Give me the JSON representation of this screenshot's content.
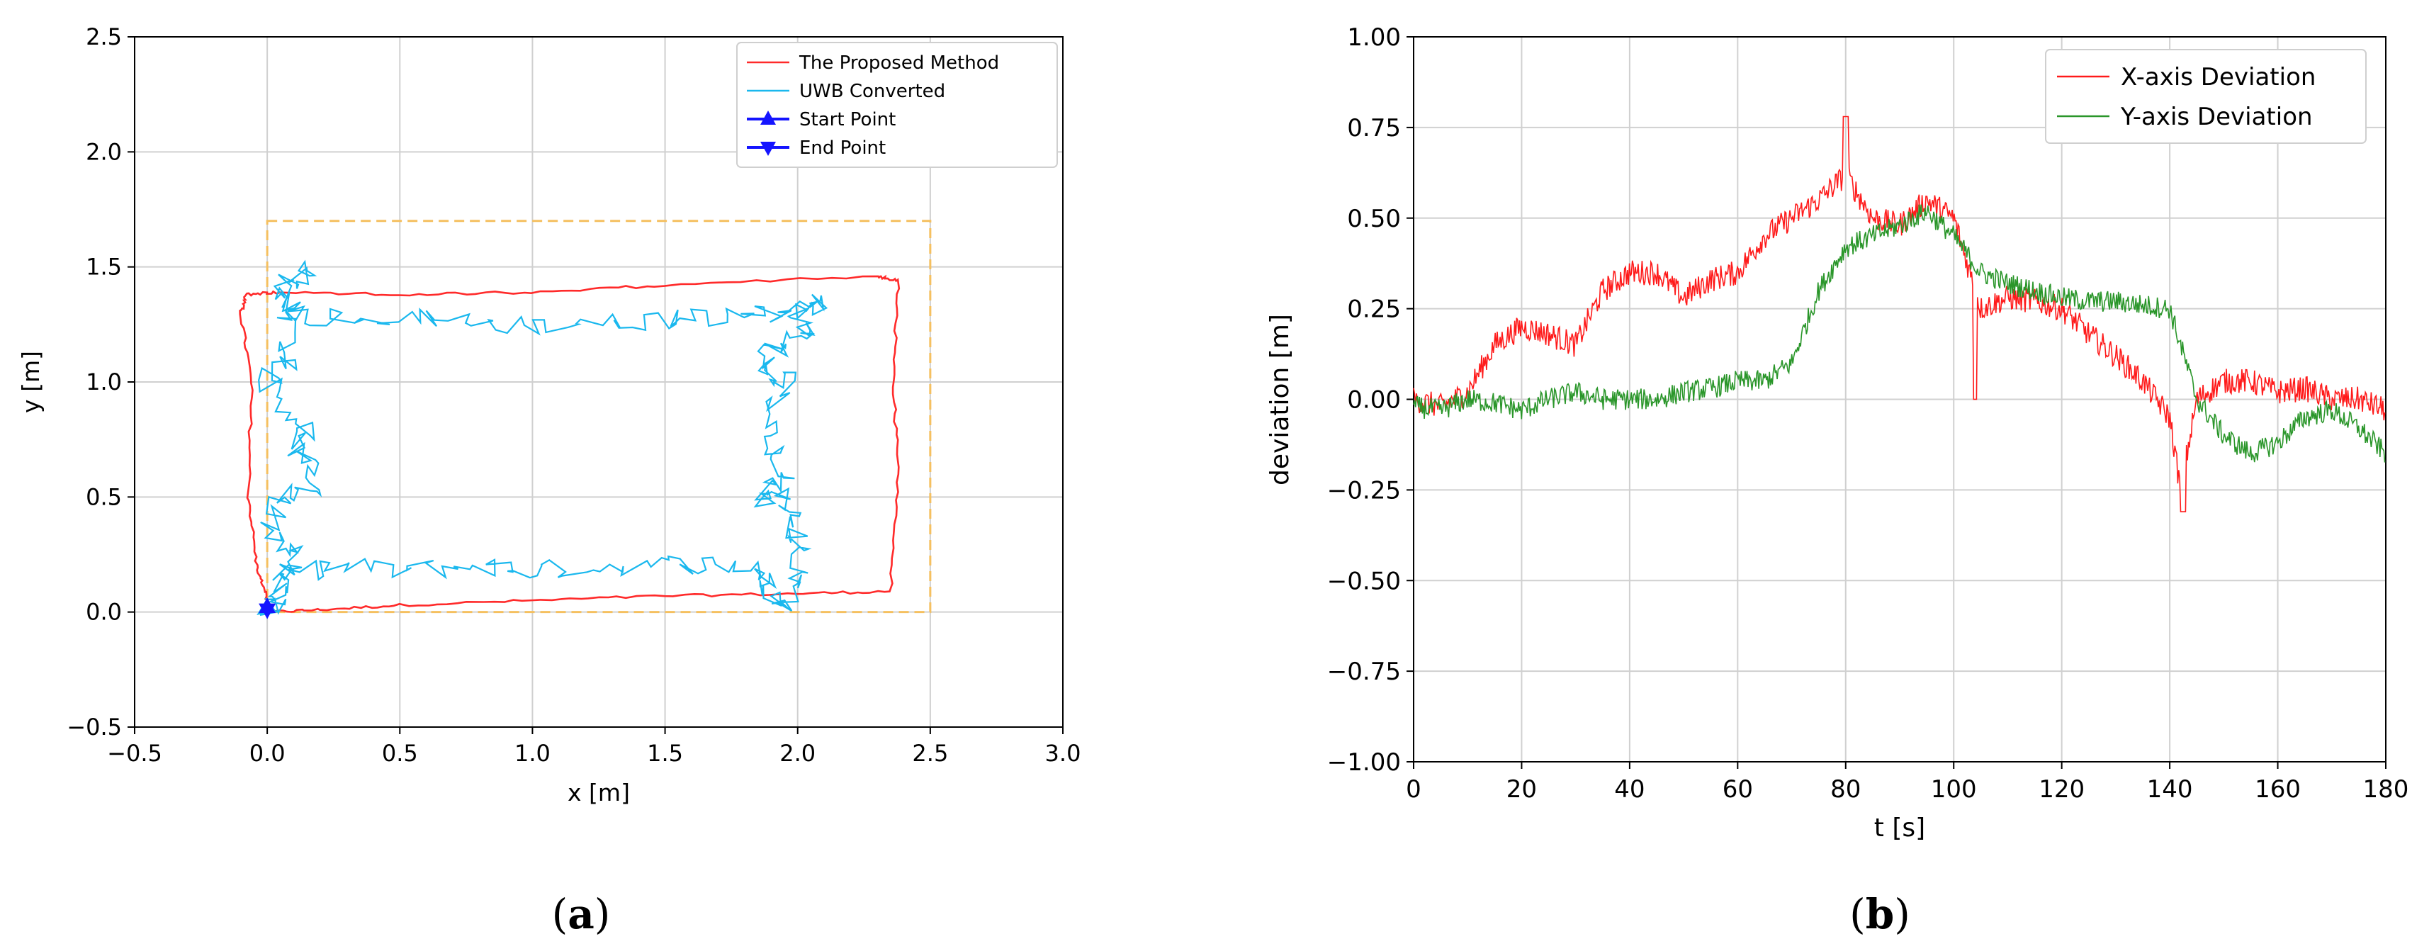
{
  "panels": {
    "a": {
      "caption_open": "(",
      "caption_letter": "a",
      "caption_close": ")"
    },
    "b": {
      "caption_open": "(",
      "caption_letter": "b",
      "caption_close": ")"
    }
  },
  "chart_data": [
    {
      "type": "line",
      "xlabel": "x [m]",
      "ylabel": "y [m]",
      "xlim": [
        -0.5,
        3.0
      ],
      "ylim": [
        -0.5,
        2.5
      ],
      "xticks": [
        -0.5,
        0.0,
        0.5,
        1.0,
        1.5,
        2.0,
        2.5,
        3.0
      ],
      "yticks": [
        -0.5,
        0.0,
        0.5,
        1.0,
        1.5,
        2.0,
        2.5
      ],
      "xtick_labels": [
        "−0.5",
        "0.0",
        "0.5",
        "1.0",
        "1.5",
        "2.0",
        "2.5",
        "3.0"
      ],
      "ytick_labels": [
        "−0.5",
        "0.0",
        "0.5",
        "1.0",
        "1.5",
        "2.0",
        "2.5"
      ],
      "grid": true,
      "legend_position": "upper right",
      "colors": {
        "proposed": "#ff2a2a",
        "uwb": "#1ab8ee",
        "markers": "#1414ff",
        "reference": "#f5c060"
      },
      "reference_rectangle": {
        "x0": 0.0,
        "y0": 0.0,
        "x1": 2.5,
        "y1": 1.7
      },
      "series": [
        {
          "name": "The Proposed Method",
          "x": [
            0.0,
            0.2,
            0.5,
            1.0,
            1.5,
            2.0,
            2.35,
            2.38,
            2.36,
            2.38,
            2.3,
            1.5,
            1.0,
            0.5,
            0.05,
            -0.08,
            -0.1,
            -0.06,
            -0.07,
            -0.04,
            0.0
          ],
          "y": [
            0.0,
            0.01,
            0.03,
            0.05,
            0.07,
            0.08,
            0.09,
            0.6,
            1.0,
            1.44,
            1.46,
            1.42,
            1.39,
            1.38,
            1.39,
            1.38,
            1.3,
            1.0,
            0.5,
            0.2,
            0.05
          ]
        },
        {
          "name": "UWB Converted",
          "x": [
            0.0,
            0.05,
            0.2,
            0.5,
            0.8,
            1.0,
            1.3,
            1.6,
            1.85,
            1.9,
            1.95,
            2.02,
            2.0,
            1.95,
            1.85,
            1.95,
            1.9,
            1.95,
            1.85,
            1.92,
            2.05,
            2.0,
            2.1,
            1.9,
            1.7,
            1.5,
            1.2,
            0.9,
            0.6,
            0.3,
            0.1,
            0.05,
            0.15,
            0.05,
            0.1,
            0.0,
            0.15,
            0.1,
            0.2,
            0.05,
            0.0,
            0.1,
            0.05,
            0.0
          ],
          "y": [
            0.0,
            0.15,
            0.2,
            0.18,
            0.2,
            0.18,
            0.2,
            0.21,
            0.2,
            0.1,
            0.02,
            0.2,
            0.35,
            0.5,
            0.5,
            0.6,
            0.8,
            1.0,
            1.05,
            1.15,
            1.2,
            1.3,
            1.35,
            1.3,
            1.28,
            1.27,
            1.25,
            1.25,
            1.28,
            1.27,
            1.3,
            1.4,
            1.5,
            1.35,
            1.1,
            1.0,
            0.8,
            0.7,
            0.55,
            0.5,
            0.35,
            0.25,
            0.1,
            0.0
          ]
        }
      ],
      "markers": [
        {
          "name": "Start Point",
          "symbol": "triangle-up",
          "x": 0.0,
          "y": 0.02
        },
        {
          "name": "End Point",
          "symbol": "triangle-down",
          "x": 0.0,
          "y": 0.0
        }
      ]
    },
    {
      "type": "line",
      "xlabel": "t [s]",
      "ylabel": "deviation [m]",
      "xlim": [
        0,
        180
      ],
      "ylim": [
        -1.0,
        1.0
      ],
      "xticks": [
        0,
        20,
        40,
        60,
        80,
        100,
        120,
        140,
        160,
        180
      ],
      "yticks": [
        -1.0,
        -0.75,
        -0.5,
        -0.25,
        0.0,
        0.25,
        0.5,
        0.75,
        1.0
      ],
      "xtick_labels": [
        "0",
        "20",
        "40",
        "60",
        "80",
        "100",
        "120",
        "140",
        "160",
        "180"
      ],
      "ytick_labels": [
        "−1.00",
        "−0.75",
        "−0.50",
        "−0.25",
        "0.00",
        "0.25",
        "0.50",
        "0.75",
        "1.00"
      ],
      "grid": true,
      "legend_position": "upper right",
      "series": [
        {
          "name": "X-axis Deviation",
          "color": "#ff1a1a",
          "x": [
            0,
            5,
            10,
            15,
            20,
            25,
            30,
            35,
            40,
            45,
            50,
            55,
            60,
            65,
            70,
            75,
            80,
            85,
            90,
            95,
            100,
            105,
            110,
            115,
            120,
            125,
            130,
            135,
            140,
            142,
            145,
            150,
            155,
            160,
            165,
            170,
            175,
            180
          ],
          "y": [
            0.0,
            -0.02,
            0.02,
            0.15,
            0.2,
            0.18,
            0.15,
            0.3,
            0.35,
            0.35,
            0.28,
            0.33,
            0.35,
            0.45,
            0.5,
            0.55,
            0.62,
            0.5,
            0.48,
            0.55,
            0.5,
            0.25,
            0.28,
            0.27,
            0.25,
            0.18,
            0.12,
            0.05,
            -0.05,
            -0.25,
            0.0,
            0.05,
            0.05,
            0.02,
            0.03,
            0.0,
            0.0,
            -0.03
          ]
        },
        {
          "name": "Y-axis Deviation",
          "color": "#2a962a",
          "x": [
            0,
            5,
            10,
            15,
            20,
            25,
            30,
            35,
            40,
            45,
            50,
            55,
            60,
            65,
            70,
            75,
            80,
            85,
            90,
            95,
            100,
            105,
            110,
            115,
            120,
            125,
            130,
            135,
            140,
            145,
            150,
            155,
            160,
            165,
            170,
            175,
            180
          ],
          "y": [
            -0.02,
            -0.03,
            0.0,
            -0.01,
            -0.03,
            0.0,
            0.02,
            0.0,
            0.0,
            0.0,
            0.02,
            0.03,
            0.05,
            0.05,
            0.1,
            0.3,
            0.42,
            0.45,
            0.48,
            0.52,
            0.45,
            0.35,
            0.32,
            0.3,
            0.28,
            0.27,
            0.27,
            0.26,
            0.25,
            0.0,
            -0.1,
            -0.15,
            -0.12,
            -0.05,
            -0.03,
            -0.08,
            -0.15
          ]
        }
      ]
    }
  ]
}
